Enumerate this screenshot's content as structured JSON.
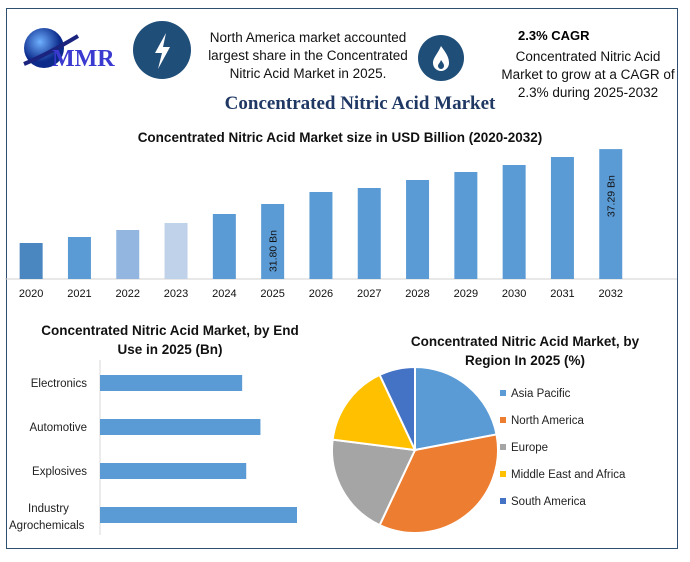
{
  "header": {
    "logo_text": "MMR",
    "bolt_icon": "lightning-bolt-icon",
    "flame_icon": "flame-icon",
    "highlight_1": "North America market accounted largest share in the Concentrated Nitric Acid Market in 2025.",
    "cagr_label": "2.3% CAGR",
    "highlight_2": "Concentrated Nitric Acid Market to grow at a CAGR of 2.3% during 2025-2032",
    "main_title": "Concentrated Nitric Acid Market"
  },
  "chart_data": [
    {
      "type": "bar",
      "title": "Concentrated Nitric Acid Market size in USD Billion (2020-2032)",
      "categories": [
        "2020",
        "2021",
        "2022",
        "2023",
        "2024",
        "2025",
        "2026",
        "2027",
        "2028",
        "2029",
        "2030",
        "2031",
        "2032"
      ],
      "values": [
        27.9,
        28.5,
        29.2,
        29.9,
        30.8,
        31.8,
        33.0,
        33.4,
        34.2,
        35.0,
        35.7,
        36.5,
        37.29
      ],
      "data_labels": {
        "2025": "31.80 Bn",
        "2032": "37.29 Bn"
      },
      "colors": [
        "#4a86c0",
        "#5b9bd5",
        "#93b6e0",
        "#bfd2ea",
        "#5b9bd5",
        "#5b9bd5",
        "#5b9bd5",
        "#5b9bd5",
        "#5b9bd5",
        "#5b9bd5",
        "#5b9bd5",
        "#5b9bd5",
        "#5b9bd5"
      ],
      "grid": false
    },
    {
      "type": "bar",
      "orientation": "horizontal",
      "title": "Concentrated Nitric Acid Market, by End Use  in 2025 (Bn)",
      "categories": [
        "Electronics",
        "Automotive",
        "Explosives",
        "Industry Agrochemicals"
      ],
      "values": [
        7.0,
        7.9,
        7.2,
        9.7
      ],
      "color": "#5b9bd5"
    },
    {
      "type": "pie",
      "title": "Concentrated Nitric Acid Market, by Region In 2025 (%)",
      "legend_position": "right",
      "slices": [
        {
          "label": "Asia Pacific",
          "value": 22,
          "color": "#5b9bd5"
        },
        {
          "label": "North America",
          "value": 35,
          "color": "#ed7d31"
        },
        {
          "label": "Europe",
          "value": 20,
          "color": "#a5a5a5"
        },
        {
          "label": "Middle East and Africa",
          "value": 16,
          "color": "#ffc000"
        },
        {
          "label": "South America",
          "value": 7,
          "color": "#4472c4"
        }
      ]
    }
  ]
}
